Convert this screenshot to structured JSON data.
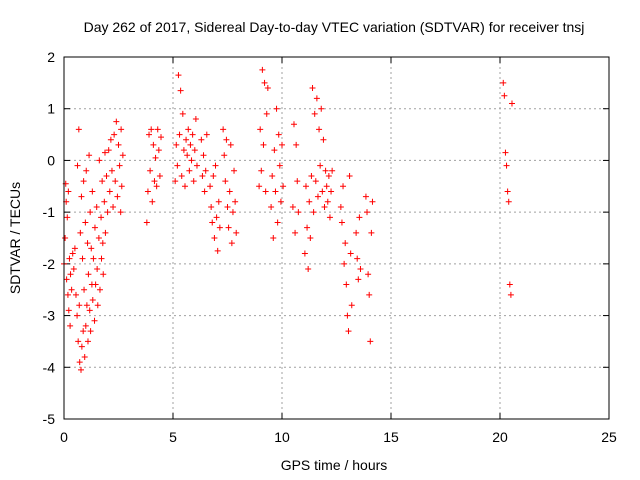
{
  "chart_data": {
    "type": "scatter",
    "title": "Day 262 of 2017, Sidereal Day-to-day VTEC variation (SDTVAR) for receiver tnsj",
    "xlabel": "GPS time / hours",
    "ylabel": "SDTVAR / TECUs",
    "xlim": [
      0,
      25
    ],
    "ylim": [
      -5,
      2
    ],
    "xticks": [
      "0",
      "5",
      "10",
      "15",
      "20",
      "25"
    ],
    "yticks": [
      "2",
      "1",
      "0",
      "-1",
      "-2",
      "-3",
      "-4",
      "-5"
    ],
    "grid": true,
    "marker": "+",
    "color": "#ff0000",
    "series": [
      {
        "name": "SDTVAR",
        "points": [
          [
            0.0,
            -2.0
          ],
          [
            0.05,
            -1.5
          ],
          [
            0.08,
            -0.45
          ],
          [
            0.1,
            -0.8
          ],
          [
            0.12,
            -2.3
          ],
          [
            0.15,
            -1.1
          ],
          [
            0.18,
            -2.6
          ],
          [
            0.2,
            -0.6
          ],
          [
            0.22,
            -2.9
          ],
          [
            0.25,
            -1.9
          ],
          [
            0.28,
            -3.2
          ],
          [
            0.3,
            -2.2
          ],
          [
            0.35,
            -2.5
          ],
          [
            0.4,
            -1.8
          ],
          [
            0.45,
            -2.1
          ],
          [
            0.5,
            -1.7
          ],
          [
            0.55,
            -2.6
          ],
          [
            0.6,
            -3.0
          ],
          [
            0.62,
            -0.1
          ],
          [
            0.65,
            -3.5
          ],
          [
            0.68,
            0.6
          ],
          [
            0.7,
            -2.8
          ],
          [
            0.72,
            -3.9
          ],
          [
            0.75,
            -1.4
          ],
          [
            0.78,
            -4.05
          ],
          [
            0.8,
            -0.7
          ],
          [
            0.82,
            -3.6
          ],
          [
            0.85,
            -1.9
          ],
          [
            0.88,
            -3.3
          ],
          [
            0.9,
            -0.4
          ],
          [
            0.92,
            -2.5
          ],
          [
            0.95,
            -3.8
          ],
          [
            0.98,
            -1.2
          ],
          [
            1.0,
            -3.2
          ],
          [
            1.02,
            -0.2
          ],
          [
            1.05,
            -2.8
          ],
          [
            1.08,
            -1.6
          ],
          [
            1.1,
            -3.5
          ],
          [
            1.12,
            -2.2
          ],
          [
            1.15,
            0.1
          ],
          [
            1.18,
            -2.9
          ],
          [
            1.2,
            -1.0
          ],
          [
            1.22,
            -3.3
          ],
          [
            1.25,
            -1.7
          ],
          [
            1.28,
            -2.4
          ],
          [
            1.3,
            -0.6
          ],
          [
            1.32,
            -2.7
          ],
          [
            1.35,
            -1.9
          ],
          [
            1.4,
            -3.1
          ],
          [
            1.42,
            -1.3
          ],
          [
            1.45,
            -2.4
          ],
          [
            1.5,
            -0.9
          ],
          [
            1.52,
            -2.1
          ],
          [
            1.55,
            -2.8
          ],
          [
            1.6,
            -1.5
          ],
          [
            1.62,
            0.0
          ],
          [
            1.65,
            -2.5
          ],
          [
            1.7,
            -1.1
          ],
          [
            1.72,
            -1.9
          ],
          [
            1.75,
            -0.4
          ],
          [
            1.78,
            -1.6
          ],
          [
            1.8,
            -2.2
          ],
          [
            1.85,
            -0.8
          ],
          [
            1.88,
            0.15
          ],
          [
            1.9,
            -1.4
          ],
          [
            1.95,
            -0.3
          ],
          [
            2.0,
            -1.0
          ],
          [
            2.05,
            0.2
          ],
          [
            2.1,
            -0.6
          ],
          [
            2.15,
            0.4
          ],
          [
            2.2,
            -0.2
          ],
          [
            2.25,
            -0.9
          ],
          [
            2.3,
            0.5
          ],
          [
            2.35,
            -0.4
          ],
          [
            2.4,
            0.75
          ],
          [
            2.45,
            -0.7
          ],
          [
            2.5,
            0.3
          ],
          [
            2.55,
            -0.1
          ],
          [
            2.6,
            -1.0
          ],
          [
            2.62,
            0.6
          ],
          [
            2.65,
            -0.5
          ],
          [
            2.7,
            0.1
          ],
          [
            3.8,
            -1.2
          ],
          [
            3.85,
            -0.6
          ],
          [
            3.9,
            0.5
          ],
          [
            3.95,
            -0.2
          ],
          [
            4.0,
            0.6
          ],
          [
            4.05,
            -0.8
          ],
          [
            4.1,
            0.3
          ],
          [
            4.15,
            -0.4
          ],
          [
            4.2,
            0.05
          ],
          [
            4.25,
            -0.5
          ],
          [
            4.3,
            0.6
          ],
          [
            4.35,
            0.2
          ],
          [
            4.4,
            -0.3
          ],
          [
            4.45,
            0.45
          ],
          [
            5.1,
            -0.4
          ],
          [
            5.15,
            0.3
          ],
          [
            5.2,
            -0.1
          ],
          [
            5.25,
            1.65
          ],
          [
            5.3,
            0.5
          ],
          [
            5.35,
            1.35
          ],
          [
            5.4,
            -0.3
          ],
          [
            5.45,
            0.9
          ],
          [
            5.5,
            0.2
          ],
          [
            5.55,
            -0.5
          ],
          [
            5.6,
            0.4
          ],
          [
            5.65,
            0.1
          ],
          [
            5.7,
            0.6
          ],
          [
            5.75,
            -0.2
          ],
          [
            5.8,
            0.3
          ],
          [
            5.85,
            0.0
          ],
          [
            5.9,
            0.5
          ],
          [
            5.95,
            -0.4
          ],
          [
            6.0,
            0.2
          ],
          [
            6.05,
            0.8
          ],
          [
            6.1,
            -0.1
          ],
          [
            6.3,
            0.4
          ],
          [
            6.35,
            -0.3
          ],
          [
            6.4,
            0.1
          ],
          [
            6.45,
            -0.6
          ],
          [
            6.5,
            -0.2
          ],
          [
            6.55,
            0.5
          ],
          [
            6.7,
            -0.5
          ],
          [
            6.75,
            -0.9
          ],
          [
            6.8,
            -1.2
          ],
          [
            6.85,
            -0.3
          ],
          [
            6.9,
            -1.5
          ],
          [
            6.95,
            -0.1
          ],
          [
            7.0,
            -1.1
          ],
          [
            7.05,
            -1.75
          ],
          [
            7.1,
            -0.8
          ],
          [
            7.15,
            -1.3
          ],
          [
            7.3,
            0.6
          ],
          [
            7.35,
            0.1
          ],
          [
            7.4,
            -0.4
          ],
          [
            7.45,
            0.4
          ],
          [
            7.5,
            -0.9
          ],
          [
            7.55,
            -1.3
          ],
          [
            7.6,
            -0.6
          ],
          [
            7.65,
            0.3
          ],
          [
            7.7,
            -1.6
          ],
          [
            7.75,
            -1.0
          ],
          [
            7.8,
            -0.2
          ],
          [
            7.85,
            -0.8
          ],
          [
            7.9,
            -1.4
          ],
          [
            8.95,
            -0.5
          ],
          [
            9.0,
            0.6
          ],
          [
            9.05,
            -0.2
          ],
          [
            9.1,
            1.75
          ],
          [
            9.15,
            0.3
          ],
          [
            9.2,
            1.5
          ],
          [
            9.25,
            -0.6
          ],
          [
            9.3,
            0.9
          ],
          [
            9.35,
            1.4
          ],
          [
            9.5,
            -0.9
          ],
          [
            9.55,
            -0.3
          ],
          [
            9.6,
            -1.5
          ],
          [
            9.65,
            0.2
          ],
          [
            9.7,
            -0.6
          ],
          [
            9.75,
            1.0
          ],
          [
            9.8,
            -1.2
          ],
          [
            9.85,
            0.5
          ],
          [
            9.9,
            -0.1
          ],
          [
            9.95,
            -0.8
          ],
          [
            10.0,
            0.3
          ],
          [
            10.05,
            -0.5
          ],
          [
            10.5,
            -0.9
          ],
          [
            10.55,
            0.7
          ],
          [
            10.6,
            -1.4
          ],
          [
            10.65,
            0.3
          ],
          [
            10.7,
            -0.4
          ],
          [
            10.75,
            -1.0
          ],
          [
            11.05,
            -1.8
          ],
          [
            11.1,
            -0.5
          ],
          [
            11.15,
            -1.3
          ],
          [
            11.2,
            -2.1
          ],
          [
            11.25,
            -0.8
          ],
          [
            11.3,
            -1.5
          ],
          [
            11.35,
            -0.3
          ],
          [
            11.4,
            1.4
          ],
          [
            11.45,
            -1.0
          ],
          [
            11.5,
            0.9
          ],
          [
            11.55,
            -0.4
          ],
          [
            11.6,
            1.2
          ],
          [
            11.65,
            -0.7
          ],
          [
            11.7,
            0.6
          ],
          [
            11.75,
            -0.1
          ],
          [
            11.8,
            1.0
          ],
          [
            11.85,
            -0.6
          ],
          [
            11.9,
            0.4
          ],
          [
            11.95,
            -0.9
          ],
          [
            12.0,
            -0.2
          ],
          [
            12.05,
            -0.5
          ],
          [
            12.1,
            -0.8
          ],
          [
            12.15,
            -0.3
          ],
          [
            12.2,
            -1.1
          ],
          [
            12.25,
            -0.6
          ],
          [
            12.3,
            -0.2
          ],
          [
            12.7,
            -0.9
          ],
          [
            12.75,
            -1.2
          ],
          [
            12.8,
            -0.5
          ],
          [
            12.85,
            -2.0
          ],
          [
            12.9,
            -1.6
          ],
          [
            12.95,
            -2.4
          ],
          [
            13.0,
            -3.0
          ],
          [
            13.05,
            -3.3
          ],
          [
            13.1,
            -0.3
          ],
          [
            13.15,
            -1.8
          ],
          [
            13.2,
            -2.8
          ],
          [
            13.4,
            -1.4
          ],
          [
            13.45,
            -1.9
          ],
          [
            13.5,
            -2.3
          ],
          [
            13.55,
            -1.1
          ],
          [
            13.6,
            -2.1
          ],
          [
            13.85,
            -0.7
          ],
          [
            13.9,
            -1.0
          ],
          [
            13.95,
            -2.2
          ],
          [
            14.0,
            -2.6
          ],
          [
            14.05,
            -3.5
          ],
          [
            14.1,
            -1.4
          ],
          [
            14.15,
            -0.8
          ],
          [
            20.15,
            1.5
          ],
          [
            20.2,
            1.25
          ],
          [
            20.25,
            0.15
          ],
          [
            20.3,
            -0.1
          ],
          [
            20.35,
            -0.6
          ],
          [
            20.4,
            -0.8
          ],
          [
            20.45,
            -2.4
          ],
          [
            20.5,
            -2.6
          ],
          [
            20.55,
            1.1
          ]
        ]
      }
    ]
  }
}
